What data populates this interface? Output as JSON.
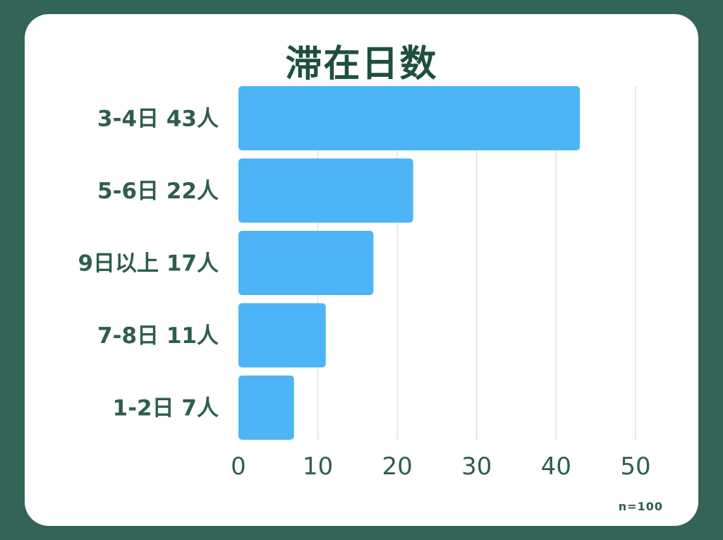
{
  "chart_data": {
    "type": "bar",
    "orientation": "horizontal",
    "title": "滞在日数",
    "categories": [
      "3-4日 43人",
      "5-6日 22人",
      "9日以上 17人",
      "7-8日 11人",
      "1-2日 7人"
    ],
    "values": [
      43,
      22,
      17,
      11,
      7
    ],
    "xlabel": "",
    "ylabel": "",
    "xlim": [
      0,
      50
    ],
    "xticks": [
      0,
      10,
      20,
      30,
      40,
      50
    ],
    "grid": true,
    "bar_color": "#4db5f5"
  },
  "footnote": "n=100",
  "colors": {
    "background": "#326457",
    "card": "#ffffff",
    "text": "#2e5e50",
    "grid": "#e2e2e2"
  }
}
